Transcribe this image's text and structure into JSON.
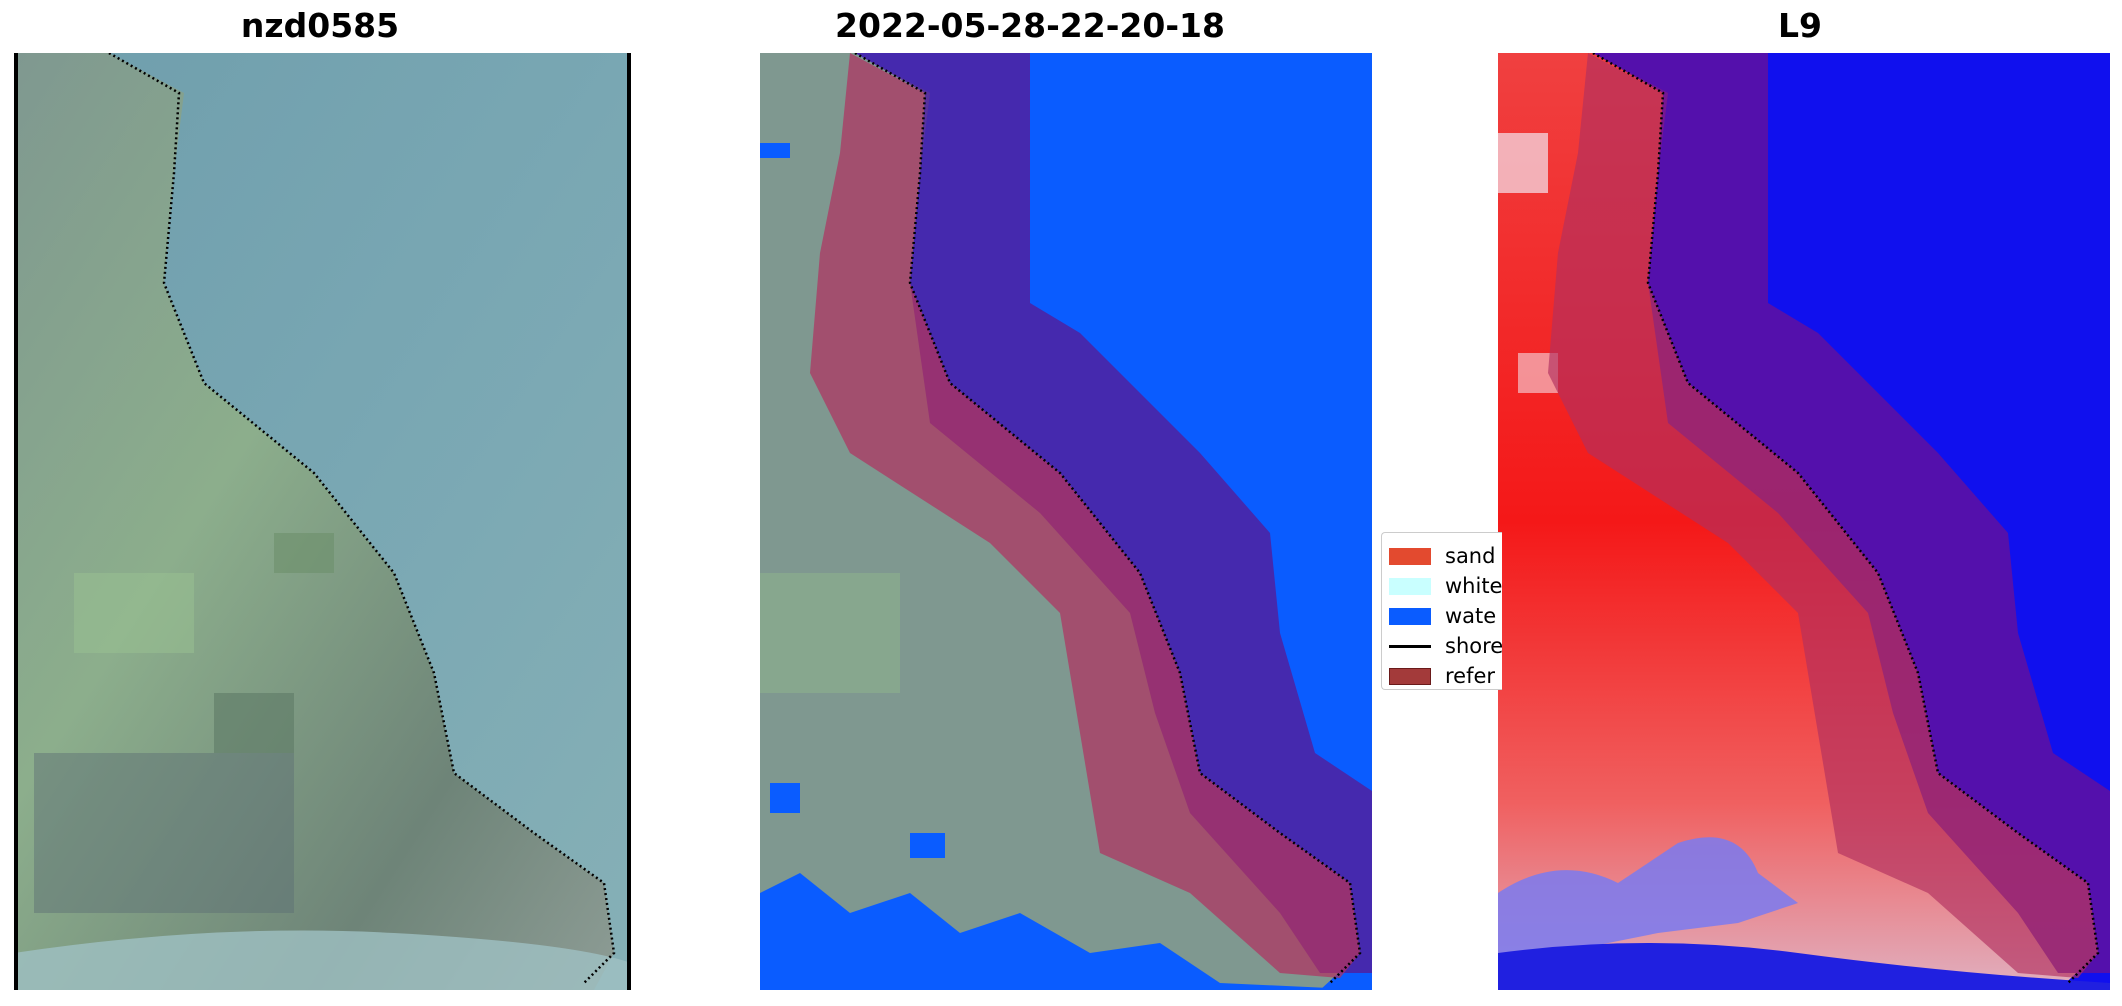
{
  "panels": [
    {
      "title": "nzd0585",
      "kind": "rgb"
    },
    {
      "title": "2022-05-28-22-20-18",
      "kind": "classified"
    },
    {
      "title": "L9",
      "kind": "index"
    }
  ],
  "legend": {
    "items": [
      {
        "label": "sand",
        "color": "#e34a2f",
        "type": "patch"
      },
      {
        "label": "white",
        "color": "#c9ffff",
        "type": "patch"
      },
      {
        "label": "wate",
        "color": "#0a5cff",
        "type": "patch"
      },
      {
        "label": "shore",
        "color": "#000000",
        "type": "line"
      },
      {
        "label": "refer",
        "color": "#a33a3a",
        "type": "patch"
      }
    ]
  },
  "colors": {
    "water_rgb": "#7aa6b0",
    "land_rgb": "#8aa08e",
    "water_class": "#0a5cff",
    "buffer": "#a0305e",
    "sea_buffer": "#5020a0",
    "index_land": "#f52020",
    "index_water": "#1010ee"
  }
}
